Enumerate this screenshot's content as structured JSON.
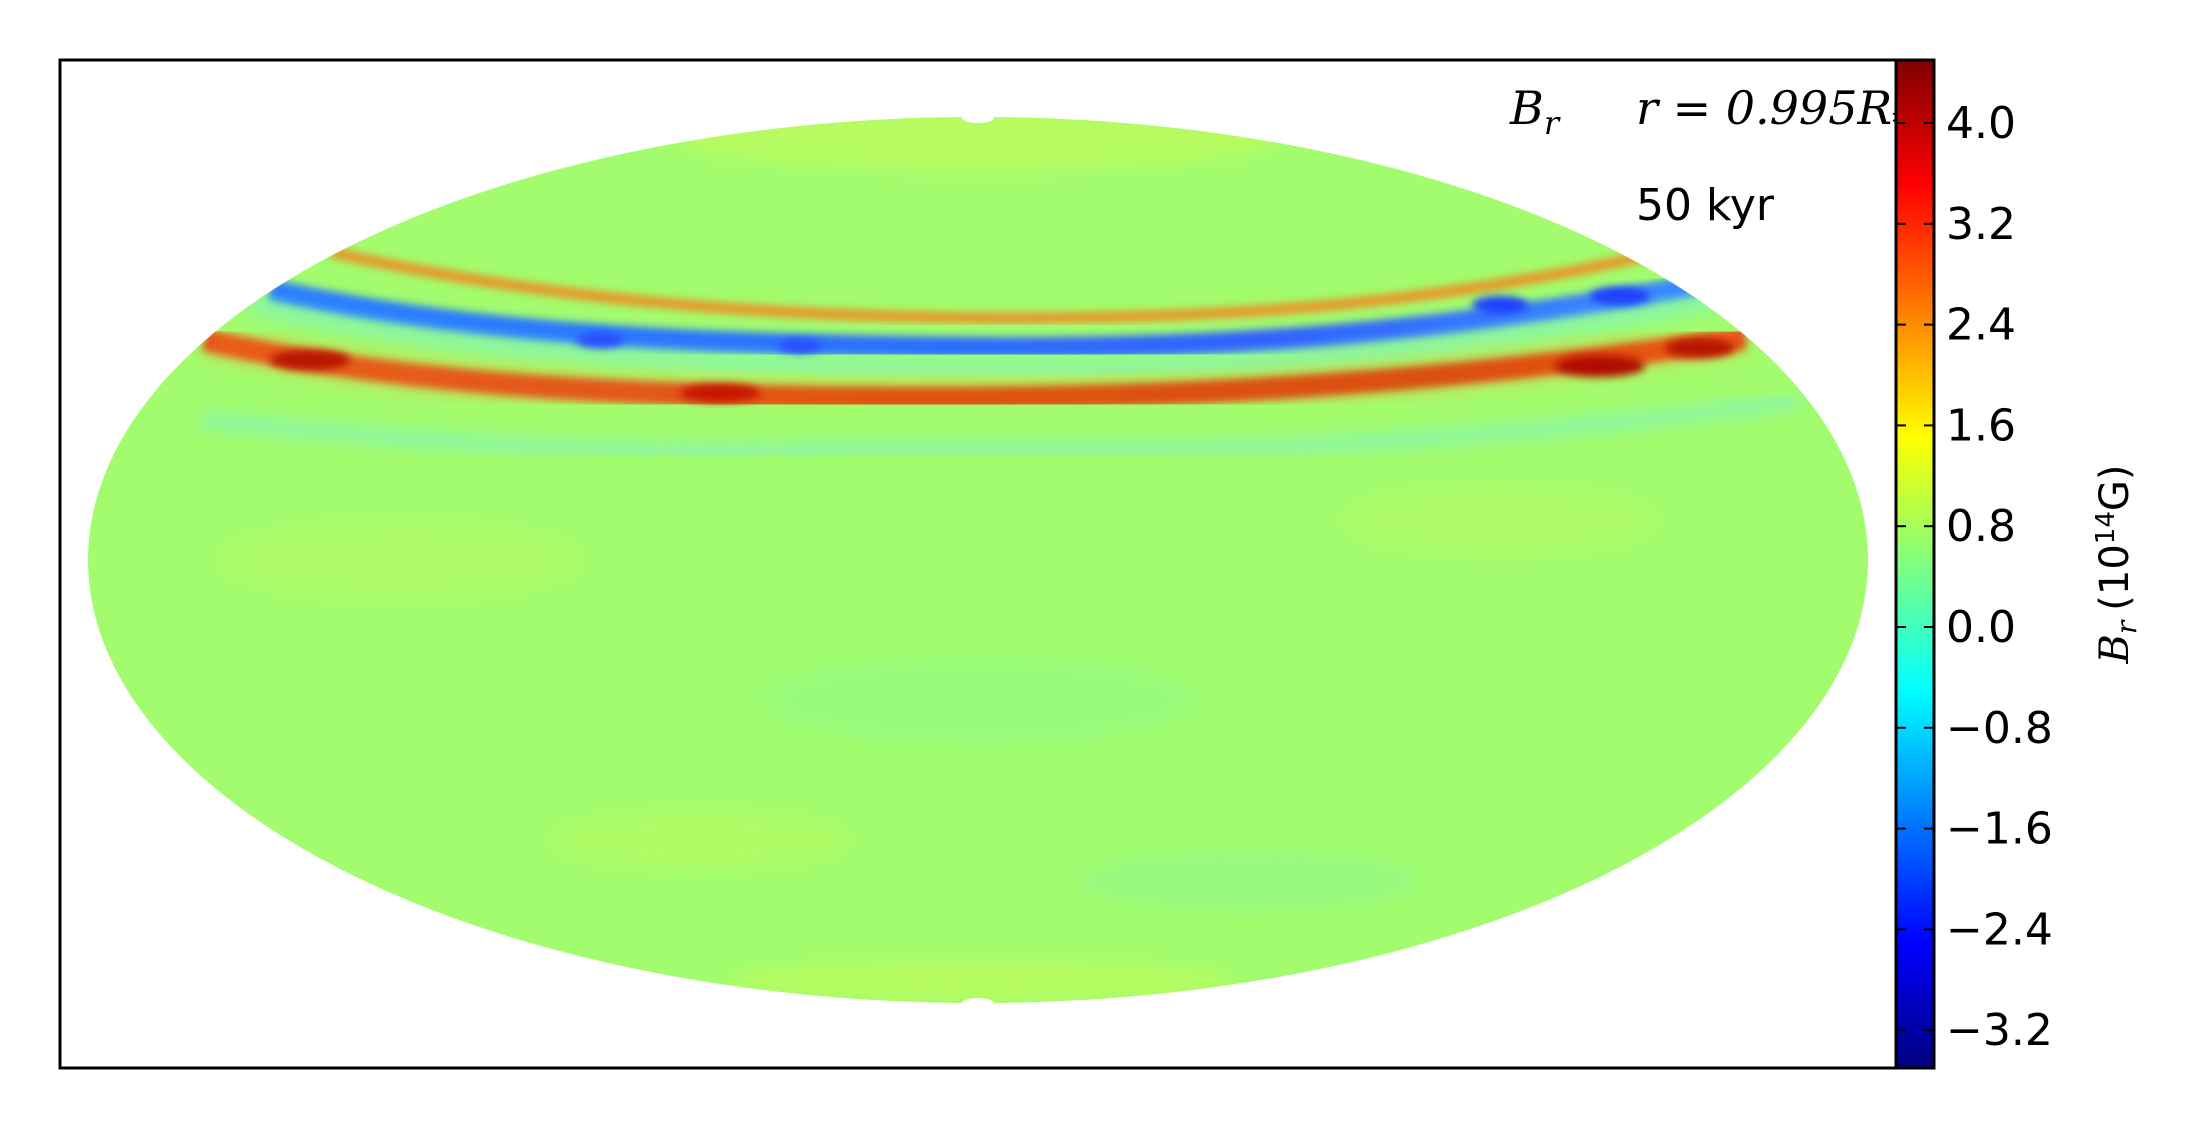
{
  "chart_data": {
    "type": "heatmap",
    "projection": "mollweide",
    "quantity": "B_r",
    "annotations": {
      "field_label": "B",
      "field_sub": "r",
      "radius_prefix": "r = 0.995",
      "radius_symbol": "R",
      "radius_sub": "*",
      "time_label": "50 kyr"
    },
    "colorbar": {
      "label_symbol": "B",
      "label_sub": "r",
      "label_open": "(10",
      "label_exp": "14",
      "label_close": "G)",
      "vmin": -3.5,
      "vmax": 4.5,
      "ticks": [
        4.0,
        3.2,
        2.4,
        1.6,
        0.8,
        0.0,
        -0.8,
        -1.6,
        -2.4,
        -3.2
      ],
      "tick_labels": [
        "4.0",
        "3.2",
        "2.4",
        "1.6",
        "0.8",
        "0.0",
        "−0.8",
        "−1.6",
        "−2.4",
        "−3.2"
      ],
      "colormap": "jet",
      "colormap_stops": [
        "#00007f",
        "#0000ff",
        "#007fff",
        "#00ffff",
        "#7fff7f",
        "#ffff00",
        "#ff7f00",
        "#ff0000",
        "#7f0000"
      ]
    },
    "background_value": -0.1,
    "features": [
      {
        "name": "northern-positive-band",
        "latitude_deg": 53,
        "value": 4.2
      },
      {
        "name": "northern-negative-band",
        "latitude_deg": 60,
        "value": -2.6
      },
      {
        "name": "thin-positive-band",
        "latitude_deg": 64,
        "value": 2.0
      },
      {
        "name": "weak-negative-filaments",
        "latitude_deg": 40,
        "value": -1.4
      }
    ],
    "grid": false
  }
}
